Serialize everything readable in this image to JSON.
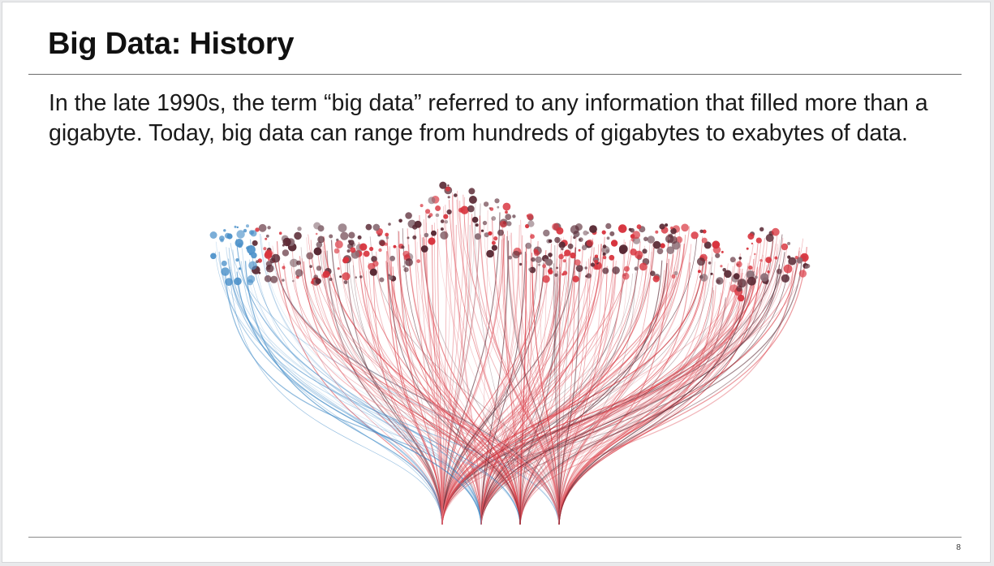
{
  "slide": {
    "title": "Big Data: History",
    "body": "In the late 1990s, the term “big data” referred to any information that filled more than a gigabyte. Today, big data can range from hundreds of gigabytes to exabytes of data.",
    "page_number": "8"
  },
  "visual": {
    "description_icon": "network-bundle-visualization",
    "colors": {
      "blue": "#4a90c9",
      "red": "#d8333d",
      "dark": "#5a2a35",
      "light_red": "#e8858d"
    }
  }
}
